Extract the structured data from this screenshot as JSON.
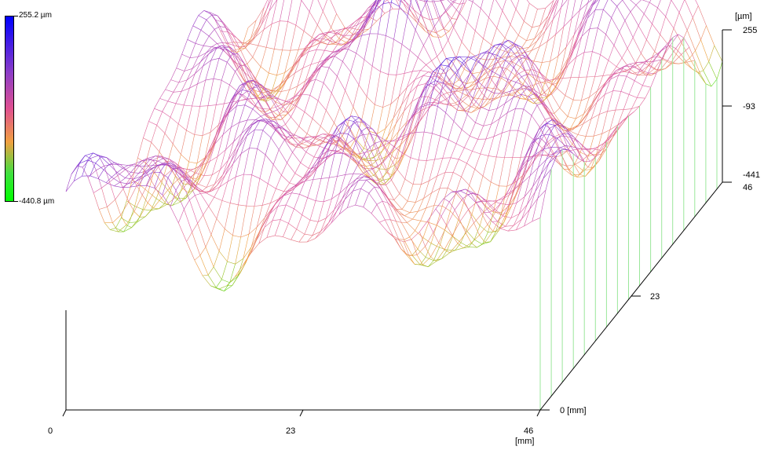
{
  "chart_data": {
    "type": "surface3d",
    "colorbar": {
      "max_label": "255.2 µm",
      "min_label": "-440.8 µm",
      "max": 255.2,
      "min": -440.8
    },
    "x_axis": {
      "ticks": [
        "0",
        "23",
        "46"
      ],
      "unit": "[mm]",
      "range": [
        0,
        46
      ]
    },
    "y_axis": {
      "ticks": [
        "0 [mm]",
        "23",
        "46"
      ],
      "range": [
        0,
        46
      ]
    },
    "z_axis": {
      "unit": "[µm]",
      "ticks": [
        "255",
        "-93",
        "-441"
      ],
      "range": [
        -441,
        255
      ]
    },
    "colors": {
      "high": "#0000ff",
      "mid_high": "#a040d0",
      "mid": "#e060a0",
      "mid_low": "#f0a050",
      "low": "#00ff00"
    }
  }
}
